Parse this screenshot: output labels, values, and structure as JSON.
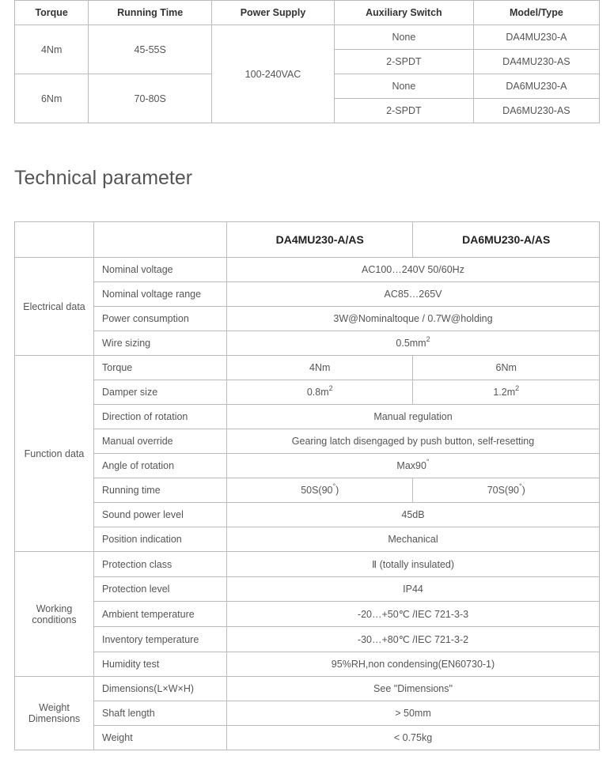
{
  "top_table": {
    "headers": [
      "Torque",
      "Running Time",
      "Power Supply",
      "Auxiliary Switch",
      "Model/Type"
    ],
    "rows": [
      {
        "torque": "4Nm",
        "running": "45-55S",
        "power": "100-240VAC",
        "aux": "None",
        "model": "DA4MU230-A"
      },
      {
        "aux": "2-SPDT",
        "model": "DA4MU230-AS"
      },
      {
        "torque": "6Nm",
        "running": "70-80S",
        "aux": "None",
        "model": "DA6MU230-A"
      },
      {
        "aux": "2-SPDT",
        "model": "DA6MU230-AS"
      }
    ]
  },
  "section_title": "Technical parameter",
  "param_table": {
    "model_headers": [
      "DA4MU230-A/AS",
      "DA6MU230-A/AS"
    ],
    "groups": [
      {
        "category": "Electrical data",
        "rows": [
          {
            "label": "Nominal voltage",
            "merged": "AC100…240V 50/60Hz"
          },
          {
            "label": "Nominal voltage range",
            "merged": "AC85…265V"
          },
          {
            "label": "Power consumption",
            "merged": "3W@Nominaltoque / 0.7W@holding"
          },
          {
            "label": "Wire sizing",
            "merged_html": "0.5mm<span class=\"sup\">2</span>"
          }
        ]
      },
      {
        "category": "Function data",
        "rows": [
          {
            "label": "Torque",
            "col1": "4Nm",
            "col2": "6Nm"
          },
          {
            "label": "Damper size",
            "col1_html": "0.8m<span class=\"sup\">2</span>",
            "col2_html": "1.2m<span class=\"sup\">2</span>"
          },
          {
            "label": "Direction of rotation",
            "merged": "Manual regulation"
          },
          {
            "label": "Manual override",
            "merged": "Gearing latch disengaged by push button, self-resetting"
          },
          {
            "label": "Angle of rotation",
            "merged_html": "Max90<span class=\"deg\">°</span>"
          },
          {
            "label": "Running time",
            "col1_html": "50S(90<span class=\"deg\">°</span>)",
            "col2_html": "70S(90<span class=\"deg\">°</span>)"
          },
          {
            "label": "Sound power level",
            "merged": "45dB"
          },
          {
            "label": "Position indication",
            "merged": "Mechanical"
          }
        ]
      },
      {
        "category": "Working conditions",
        "rows": [
          {
            "label": "Protection class",
            "merged": "Ⅱ (totally insulated)"
          },
          {
            "label": "Protection level",
            "merged": "IP44"
          },
          {
            "label": "Ambient temperature",
            "merged": "-20…+50℃ /IEC 721-3-3"
          },
          {
            "label": "Inventory temperature",
            "merged": "-30…+80℃ /IEC 721-3-2"
          },
          {
            "label": "Humidity test",
            "merged": "95%RH,non condensing(EN60730-1)"
          }
        ]
      },
      {
        "category": "Weight Dimensions",
        "rows": [
          {
            "label": "Dimensions(L×W×H)",
            "merged": "See \"Dimensions\""
          },
          {
            "label": "Shaft length",
            "merged": "> 50mm"
          },
          {
            "label": "Weight",
            "merged": "< 0.75kg"
          }
        ]
      }
    ]
  }
}
